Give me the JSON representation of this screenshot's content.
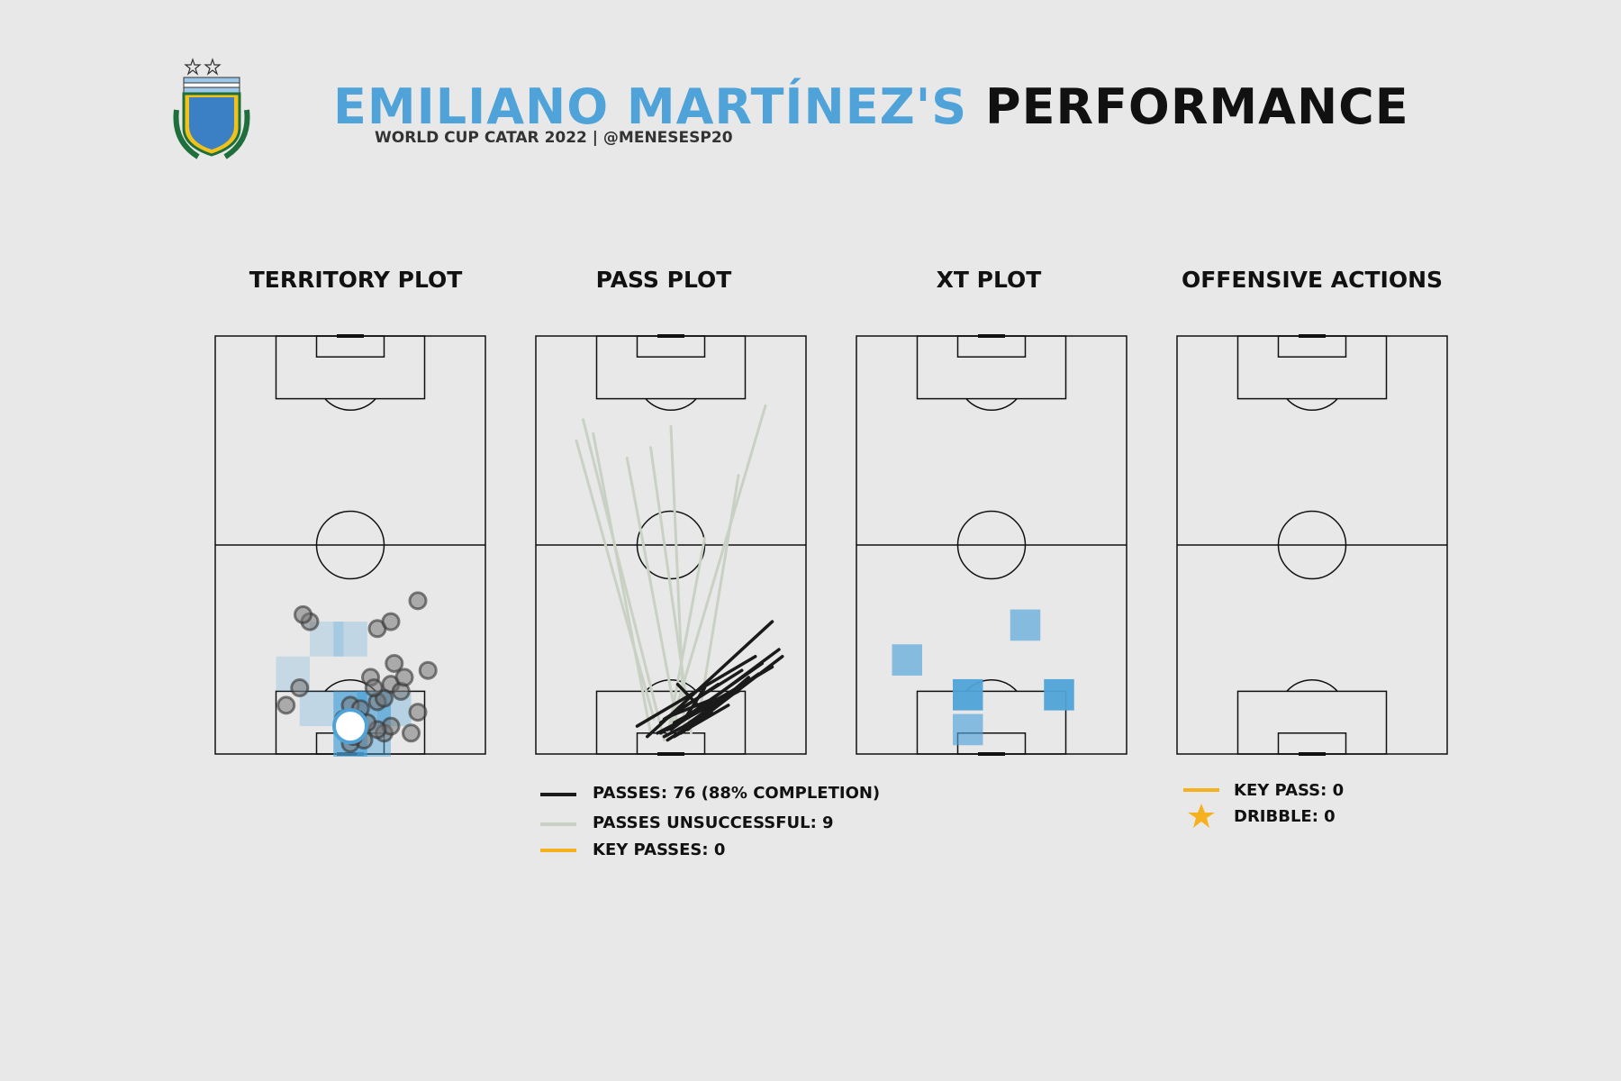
{
  "header": {
    "title_name": "EMILIANO MARTÍNEZ'S",
    "title_rest": "PERFORMANCE",
    "subtitle": "WORLD CUP CATAR 2022 | @MENESESP20",
    "logo_text": "AFA"
  },
  "panels": {
    "territory": "TERRITORY PLOT",
    "pass": "PASS PLOT",
    "xt": "XT PLOT",
    "offensive": "OFFENSIVE ACTIONS"
  },
  "pass_legend": {
    "completed": "PASSES: 76 (88% COMPLETION)",
    "unsuccessful": "PASSES UNSUCCESSFUL: 9",
    "key": "KEY PASSES: 0"
  },
  "offensive_legend": {
    "key_pass": "KEY PASS: 0",
    "dribble": "DRIBBLE: 0"
  },
  "colors": {
    "accent": "#4fa3d8",
    "completed_pass": "#1a1a1a",
    "unsuccessful_pass": "#c9d1c4",
    "key_pass": "#f5b120",
    "background": "#e8e8e8"
  },
  "chart_data": [
    {
      "type": "scatter",
      "title": "TERRITORY PLOT",
      "pitch": {
        "length": 120,
        "width": 80
      },
      "touches": [
        [
          14,
          21
        ],
        [
          19,
          25
        ],
        [
          38,
          28
        ],
        [
          40,
          26
        ],
        [
          36,
          48
        ],
        [
          38,
          52
        ],
        [
          44,
          60
        ],
        [
          20,
          52
        ],
        [
          18,
          55
        ],
        [
          22,
          56
        ],
        [
          26,
          53
        ],
        [
          24,
          63
        ],
        [
          12,
          60
        ],
        [
          6,
          50
        ],
        [
          8,
          52
        ],
        [
          7,
          48
        ],
        [
          6,
          58
        ],
        [
          22,
          46
        ],
        [
          10,
          38
        ],
        [
          14,
          40
        ],
        [
          13,
          43
        ],
        [
          15,
          48
        ],
        [
          9,
          45
        ],
        [
          10,
          42
        ],
        [
          16,
          50
        ],
        [
          19,
          47
        ],
        [
          4,
          44
        ],
        [
          3,
          40
        ],
        [
          5,
          41
        ]
      ],
      "average_position": [
        8,
        40
      ],
      "heat_bins": [
        {
          "x": 33,
          "y": 33,
          "v": 0.15
        },
        {
          "x": 33,
          "y": 40,
          "v": 0.2
        },
        {
          "x": 23,
          "y": 23,
          "v": 0.15
        },
        {
          "x": 13,
          "y": 30,
          "v": 0.2
        },
        {
          "x": 13,
          "y": 40,
          "v": 0.9
        },
        {
          "x": 13,
          "y": 47,
          "v": 0.8
        },
        {
          "x": 13,
          "y": 53,
          "v": 0.3
        },
        {
          "x": 3,
          "y": 40,
          "v": 0.85
        },
        {
          "x": 3,
          "y": 47,
          "v": 0.5
        }
      ]
    },
    {
      "type": "line",
      "title": "PASS PLOT",
      "pitch": {
        "length": 120,
        "width": 80
      },
      "completed_passes": [
        [
          8,
          30,
          28,
          65
        ],
        [
          5,
          33,
          38,
          70
        ],
        [
          9,
          37,
          20,
          54
        ],
        [
          10,
          38,
          24,
          61
        ],
        [
          6,
          36,
          18,
          60
        ],
        [
          7,
          40,
          30,
          72
        ],
        [
          9,
          42,
          26,
          67
        ],
        [
          8,
          44,
          23,
          66
        ],
        [
          7,
          45,
          22,
          63
        ],
        [
          6,
          43,
          20,
          62
        ],
        [
          5,
          41,
          14,
          57
        ],
        [
          4,
          39,
          12,
          52
        ],
        [
          8,
          46,
          28,
          73
        ],
        [
          7,
          39,
          16,
          55
        ],
        [
          9,
          41,
          18,
          58
        ],
        [
          6,
          37,
          25,
          70
        ],
        [
          5,
          38,
          10,
          48
        ],
        [
          10,
          44,
          19,
          50
        ],
        [
          12,
          50,
          20,
          42
        ],
        [
          11,
          40,
          16,
          53
        ]
      ],
      "unsuccessful_passes": [
        [
          10,
          35,
          90,
          12
        ],
        [
          6,
          34,
          92,
          17
        ],
        [
          8,
          42,
          85,
          27
        ],
        [
          4,
          38,
          96,
          14
        ],
        [
          7,
          44,
          94,
          40
        ],
        [
          9,
          48,
          80,
          60
        ],
        [
          5,
          39,
          62,
          50
        ],
        [
          6,
          46,
          88,
          34
        ],
        [
          8,
          40,
          100,
          68
        ]
      ],
      "key_passes": []
    },
    {
      "type": "heatmap",
      "title": "XT PLOT",
      "pitch": {
        "length": 120,
        "width": 80
      },
      "bins": [
        {
          "x": 37,
          "y": 50,
          "v": 0.5
        },
        {
          "x": 27,
          "y": 15,
          "v": 0.5
        },
        {
          "x": 17,
          "y": 33,
          "v": 1.0
        },
        {
          "x": 17,
          "y": 60,
          "v": 1.0
        },
        {
          "x": 7,
          "y": 33,
          "v": 0.5
        }
      ]
    },
    {
      "type": "scatter",
      "title": "OFFENSIVE ACTIONS",
      "pitch": {
        "length": 120,
        "width": 80
      },
      "key_passes": [],
      "dribbles": []
    }
  ]
}
